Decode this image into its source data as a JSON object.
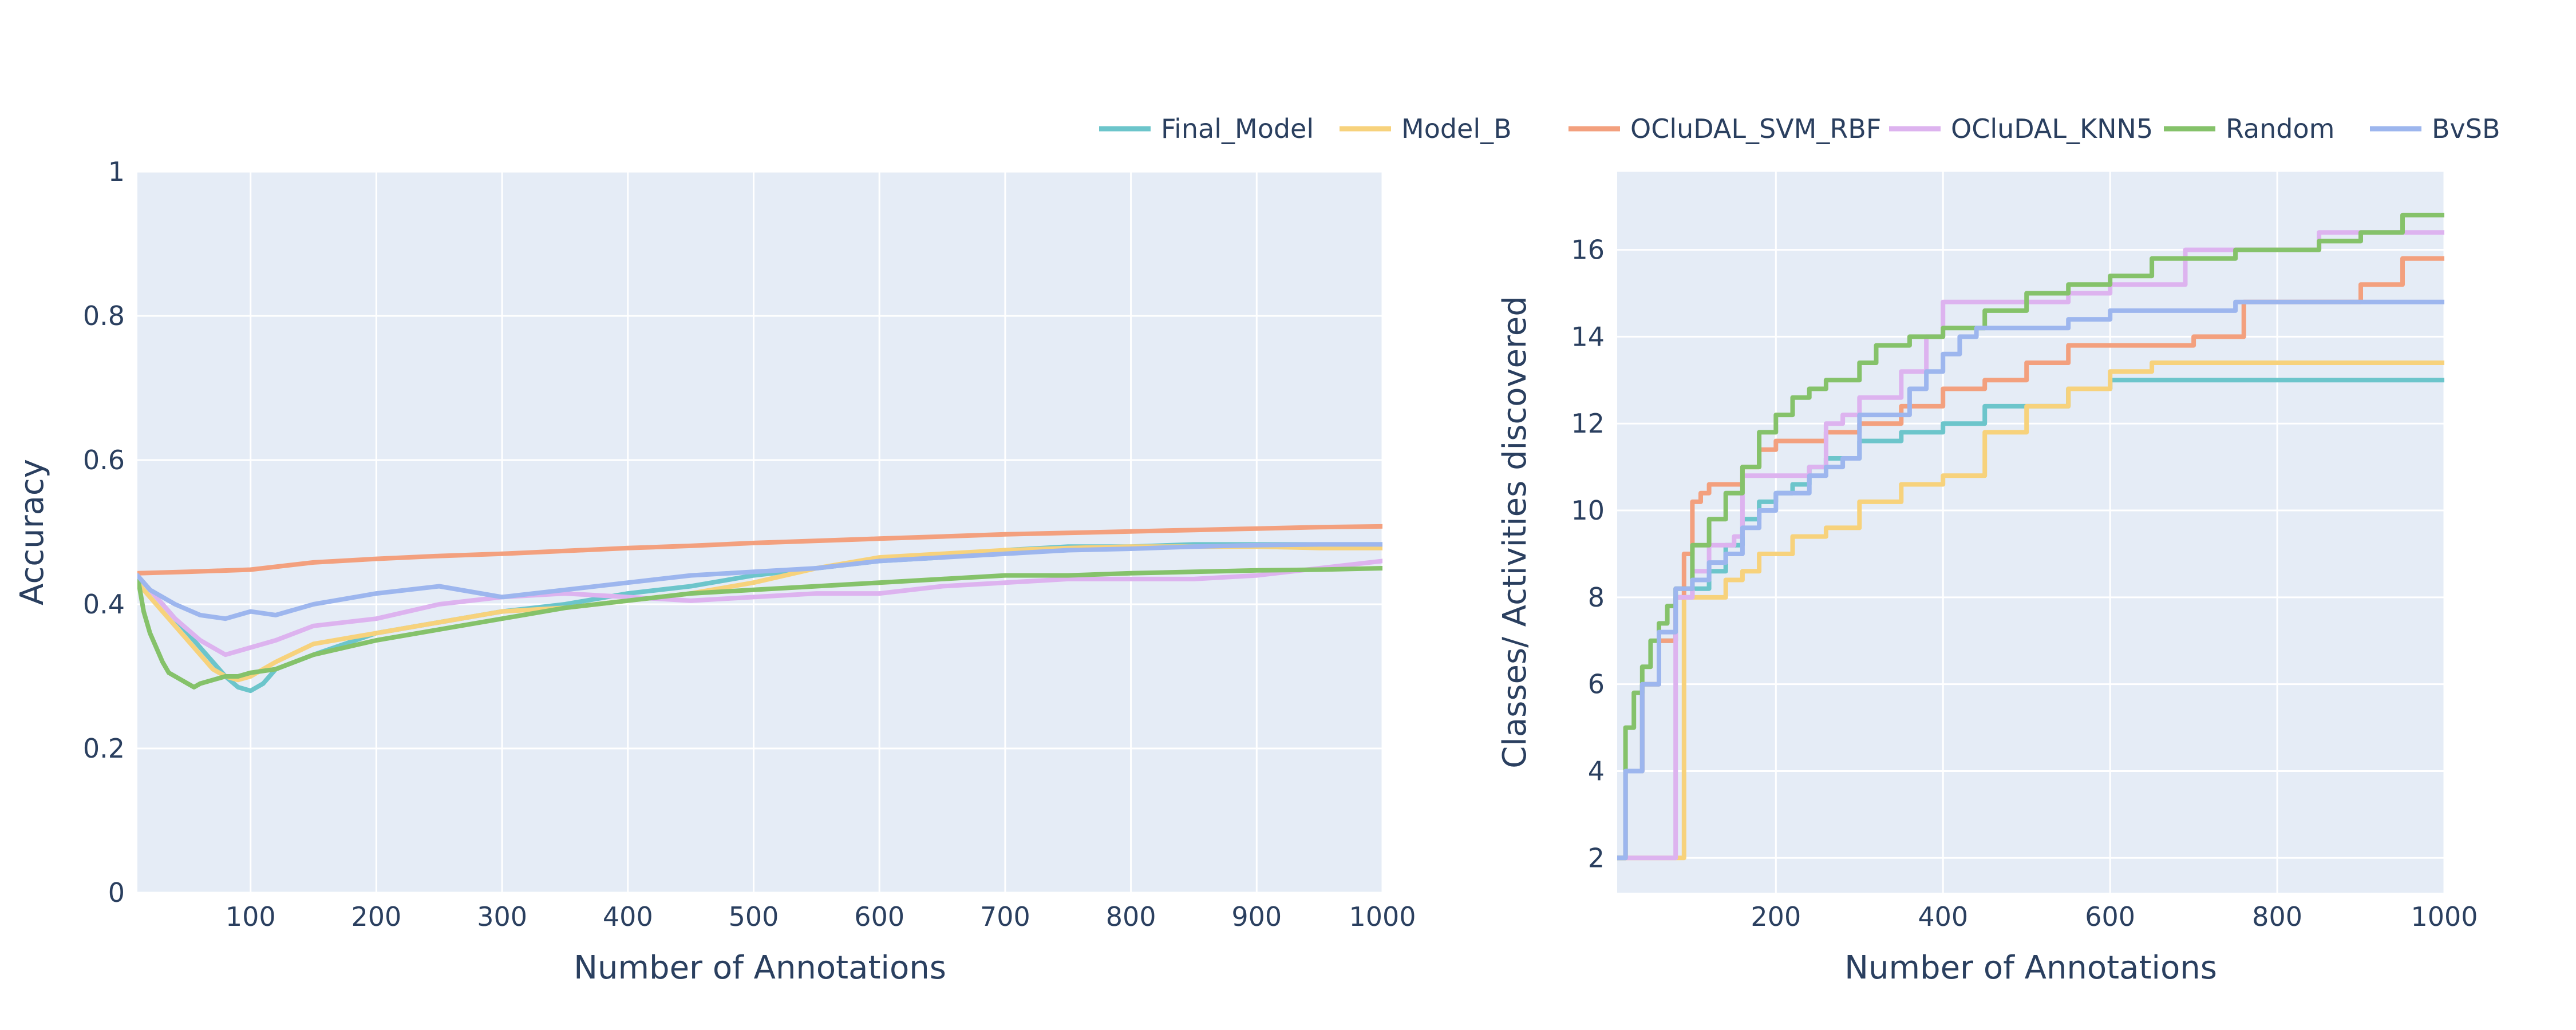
{
  "colors": {
    "Final_Model": "#6cc5cb",
    "Model_B": "#f7d27c",
    "OCluDAL_SVM_RBF": "#f3a07e",
    "OCluDAL_KNN5": "#ddb3ef",
    "Random": "#85c26a",
    "BvSB": "#9db6ee"
  },
  "legend": {
    "items": [
      "Final_Model",
      "Model_B",
      "OCluDAL_SVM_RBF",
      "OCluDAL_KNN5",
      "Random",
      "BvSB"
    ],
    "placement": "top-right"
  },
  "chart_data": [
    {
      "type": "line",
      "xlabel": "Number of Annotations",
      "ylabel": "Accuracy",
      "xlim": [
        10,
        1000
      ],
      "ylim": [
        0,
        1
      ],
      "xticks": [
        100,
        200,
        300,
        400,
        500,
        600,
        700,
        800,
        900,
        1000
      ],
      "yticks": [
        0,
        0.2,
        0.4,
        0.6,
        0.8,
        1
      ],
      "grid": true,
      "series": [
        {
          "name": "Final_Model",
          "x": [
            10,
            20,
            40,
            60,
            80,
            90,
            100,
            110,
            120,
            150,
            200,
            250,
            300,
            350,
            400,
            450,
            500,
            550,
            600,
            650,
            700,
            750,
            800,
            850,
            900,
            950,
            1000
          ],
          "y": [
            0.44,
            0.42,
            0.38,
            0.34,
            0.3,
            0.285,
            0.28,
            0.29,
            0.31,
            0.33,
            0.36,
            0.375,
            0.39,
            0.4,
            0.415,
            0.425,
            0.44,
            0.45,
            0.46,
            0.465,
            0.475,
            0.48,
            0.48,
            0.483,
            0.483,
            0.483,
            0.483
          ]
        },
        {
          "name": "Model_B",
          "x": [
            10,
            30,
            50,
            70,
            80,
            90,
            100,
            120,
            150,
            200,
            250,
            300,
            350,
            400,
            450,
            500,
            550,
            600,
            650,
            700,
            750,
            800,
            850,
            900,
            950,
            1000
          ],
          "y": [
            0.43,
            0.39,
            0.35,
            0.31,
            0.3,
            0.295,
            0.3,
            0.32,
            0.345,
            0.36,
            0.375,
            0.39,
            0.395,
            0.405,
            0.415,
            0.43,
            0.45,
            0.465,
            0.47,
            0.475,
            0.478,
            0.48,
            0.48,
            0.48,
            0.478,
            0.478
          ]
        },
        {
          "name": "OCluDAL_SVM_RBF",
          "x": [
            10,
            50,
            100,
            150,
            200,
            250,
            300,
            350,
            400,
            450,
            500,
            550,
            600,
            650,
            700,
            750,
            800,
            850,
            900,
            950,
            1000
          ],
          "y": [
            0.443,
            0.445,
            0.448,
            0.458,
            0.463,
            0.467,
            0.47,
            0.474,
            0.478,
            0.481,
            0.485,
            0.488,
            0.491,
            0.494,
            0.497,
            0.499,
            0.501,
            0.503,
            0.505,
            0.507,
            0.508
          ]
        },
        {
          "name": "OCluDAL_KNN5",
          "x": [
            10,
            20,
            40,
            60,
            80,
            90,
            100,
            120,
            150,
            200,
            250,
            300,
            350,
            400,
            450,
            500,
            550,
            600,
            650,
            700,
            750,
            800,
            850,
            900,
            950,
            1000
          ],
          "y": [
            0.44,
            0.42,
            0.38,
            0.35,
            0.33,
            0.335,
            0.34,
            0.35,
            0.37,
            0.38,
            0.4,
            0.41,
            0.415,
            0.41,
            0.405,
            0.41,
            0.415,
            0.415,
            0.425,
            0.43,
            0.435,
            0.435,
            0.435,
            0.44,
            0.45,
            0.46
          ]
        },
        {
          "name": "Random",
          "x": [
            10,
            15,
            20,
            25,
            30,
            35,
            40,
            45,
            50,
            55,
            60,
            70,
            80,
            90,
            100,
            120,
            150,
            200,
            250,
            300,
            350,
            400,
            450,
            500,
            550,
            600,
            650,
            700,
            750,
            800,
            850,
            900,
            950,
            1000
          ],
          "y": [
            0.44,
            0.39,
            0.36,
            0.34,
            0.32,
            0.305,
            0.3,
            0.295,
            0.29,
            0.285,
            0.29,
            0.295,
            0.3,
            0.3,
            0.305,
            0.31,
            0.33,
            0.35,
            0.365,
            0.38,
            0.395,
            0.405,
            0.415,
            0.42,
            0.425,
            0.43,
            0.435,
            0.44,
            0.44,
            0.443,
            0.445,
            0.447,
            0.448,
            0.45
          ]
        },
        {
          "name": "BvSB",
          "x": [
            10,
            20,
            40,
            60,
            80,
            90,
            100,
            120,
            150,
            200,
            250,
            300,
            350,
            400,
            450,
            500,
            550,
            600,
            650,
            700,
            750,
            800,
            850,
            900,
            950,
            1000
          ],
          "y": [
            0.44,
            0.42,
            0.4,
            0.385,
            0.38,
            0.385,
            0.39,
            0.385,
            0.4,
            0.415,
            0.425,
            0.41,
            0.42,
            0.43,
            0.44,
            0.445,
            0.45,
            0.46,
            0.465,
            0.47,
            0.475,
            0.477,
            0.48,
            0.482,
            0.483,
            0.483
          ]
        }
      ]
    },
    {
      "type": "line",
      "xlabel": "Number of Annotations",
      "ylabel": "Classes/ Activities discovered",
      "xlim": [
        10,
        1000
      ],
      "ylim": [
        1.2,
        17.8
      ],
      "xticks": [
        200,
        400,
        600,
        800,
        1000
      ],
      "yticks": [
        2,
        4,
        6,
        8,
        10,
        12,
        14,
        16
      ],
      "grid": true,
      "series": [
        {
          "name": "Final_Model",
          "x": [
            10,
            20,
            40,
            60,
            80,
            100,
            120,
            140,
            160,
            180,
            200,
            220,
            240,
            260,
            300,
            350,
            400,
            450,
            500,
            550,
            600,
            650,
            700,
            800,
            900,
            1000
          ],
          "y": [
            2.0,
            4.0,
            6.0,
            7.0,
            8.0,
            8.2,
            8.6,
            9.2,
            9.8,
            10.2,
            10.4,
            10.6,
            11.0,
            11.2,
            11.6,
            11.8,
            12.0,
            12.4,
            12.4,
            12.8,
            13.0,
            13.0,
            13.0,
            13.0,
            13.0,
            13.0
          ]
        },
        {
          "name": "Model_B",
          "x": [
            10,
            90,
            100,
            120,
            140,
            160,
            180,
            200,
            220,
            260,
            300,
            350,
            400,
            450,
            500,
            550,
            600,
            650,
            700,
            800,
            900,
            1000
          ],
          "y": [
            2.0,
            8.0,
            8.0,
            8.0,
            8.4,
            8.6,
            9.0,
            9.0,
            9.4,
            9.6,
            10.2,
            10.6,
            10.8,
            11.8,
            12.4,
            12.8,
            13.2,
            13.4,
            13.4,
            13.4,
            13.4,
            13.4
          ]
        },
        {
          "name": "OCluDAL_SVM_RBF",
          "x": [
            10,
            20,
            40,
            60,
            80,
            90,
            100,
            110,
            120,
            140,
            160,
            180,
            200,
            260,
            300,
            350,
            400,
            450,
            500,
            550,
            600,
            700,
            760,
            800,
            850,
            900,
            950,
            1000
          ],
          "y": [
            2.0,
            4.0,
            6.0,
            7.0,
            8.0,
            9.0,
            10.2,
            10.4,
            10.6,
            10.6,
            11.0,
            11.4,
            11.6,
            11.8,
            12.0,
            12.4,
            12.8,
            13.0,
            13.4,
            13.8,
            13.8,
            14.0,
            14.8,
            14.8,
            14.8,
            15.2,
            15.8,
            15.8
          ]
        },
        {
          "name": "OCluDAL_KNN5",
          "x": [
            10,
            80,
            100,
            120,
            150,
            160,
            200,
            240,
            260,
            280,
            300,
            350,
            380,
            400,
            450,
            500,
            550,
            600,
            650,
            690,
            700,
            750,
            800,
            850,
            900,
            950,
            1000
          ],
          "y": [
            2.0,
            8.0,
            8.6,
            9.2,
            9.4,
            10.8,
            10.8,
            11.0,
            12.0,
            12.2,
            12.6,
            13.2,
            14.0,
            14.8,
            14.8,
            14.8,
            15.0,
            15.2,
            15.2,
            16.0,
            16.0,
            16.0,
            16.0,
            16.4,
            16.4,
            16.4,
            16.4
          ]
        },
        {
          "name": "Random",
          "x": [
            10,
            20,
            30,
            40,
            50,
            60,
            70,
            80,
            100,
            120,
            140,
            160,
            180,
            200,
            220,
            240,
            260,
            280,
            300,
            320,
            340,
            360,
            380,
            400,
            450,
            500,
            550,
            600,
            650,
            700,
            750,
            800,
            850,
            900,
            950,
            1000
          ],
          "y": [
            2.0,
            5.0,
            5.8,
            6.4,
            7.0,
            7.4,
            7.8,
            8.2,
            9.2,
            9.8,
            10.4,
            11.0,
            11.8,
            12.2,
            12.6,
            12.8,
            13.0,
            13.0,
            13.4,
            13.8,
            13.8,
            14.0,
            14.0,
            14.2,
            14.6,
            15.0,
            15.2,
            15.4,
            15.8,
            15.8,
            16.0,
            16.0,
            16.2,
            16.4,
            16.8,
            16.8
          ]
        },
        {
          "name": "BvSB",
          "x": [
            10,
            20,
            40,
            60,
            80,
            100,
            120,
            140,
            160,
            180,
            200,
            240,
            260,
            280,
            300,
            340,
            360,
            380,
            400,
            420,
            440,
            500,
            550,
            600,
            650,
            700,
            750,
            800,
            850,
            900,
            950,
            1000
          ],
          "y": [
            2.0,
            4.0,
            6.0,
            7.2,
            8.2,
            8.4,
            8.8,
            9.0,
            9.6,
            10.0,
            10.4,
            10.8,
            11.0,
            11.2,
            12.2,
            12.2,
            12.8,
            13.2,
            13.6,
            14.0,
            14.2,
            14.2,
            14.4,
            14.6,
            14.6,
            14.6,
            14.8,
            14.8,
            14.8,
            14.8,
            14.8,
            14.8
          ]
        }
      ]
    }
  ]
}
